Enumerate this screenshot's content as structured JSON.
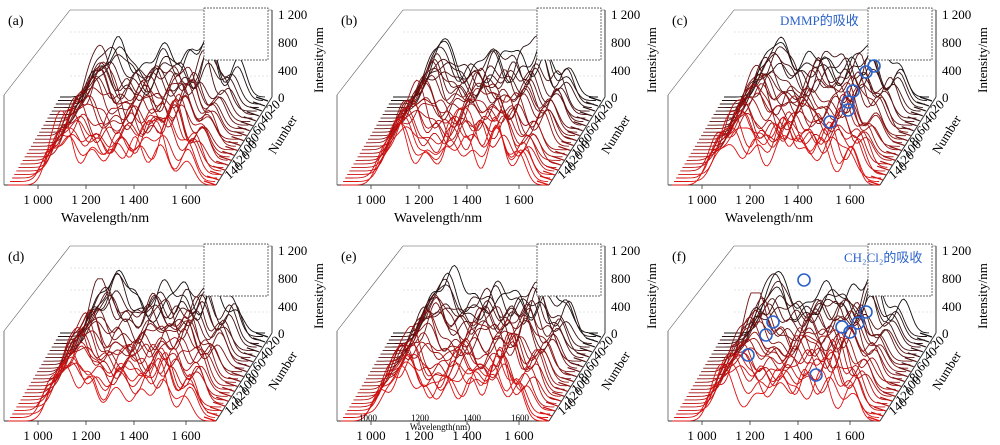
{
  "chart_data": [
    {
      "panel_label": "(a)",
      "annotation": "",
      "marked_circles": 0
    },
    {
      "panel_label": "(b)",
      "annotation": "",
      "marked_circles": 0
    },
    {
      "panel_label": "(c)",
      "annotation": "DMMP的吸收",
      "marked_circles": 6
    },
    {
      "panel_label": "(d)",
      "annotation": "",
      "marked_circles": 0
    },
    {
      "panel_label": "(e)",
      "annotation": "",
      "marked_circles": 0
    },
    {
      "panel_label": "(f)",
      "annotation": "CH₂Cl₂的吸收",
      "marked_circles": 9
    }
  ],
  "shared_axes": {
    "type": "3d waterfall line",
    "xlabel": "Wavelength/nm",
    "xticks": [
      "1 000",
      "1 200",
      "1 400",
      "1 600"
    ],
    "ylabel": "Intensity/nm",
    "zticks": [
      "0",
      "400",
      "800",
      "1 200"
    ],
    "depth_label": "Number",
    "depth_ticks": [
      "20",
      "40",
      "60",
      "80",
      "100",
      "120",
      "140"
    ],
    "colors": {
      "front": "#e01010",
      "back": "#111111",
      "marker": "#2a62c9"
    }
  },
  "panel_e_extra_xticks": [
    "1000",
    "1200",
    "1400",
    "1600"
  ],
  "panel_e_extra_xlabel": "Wavelength(nm)"
}
